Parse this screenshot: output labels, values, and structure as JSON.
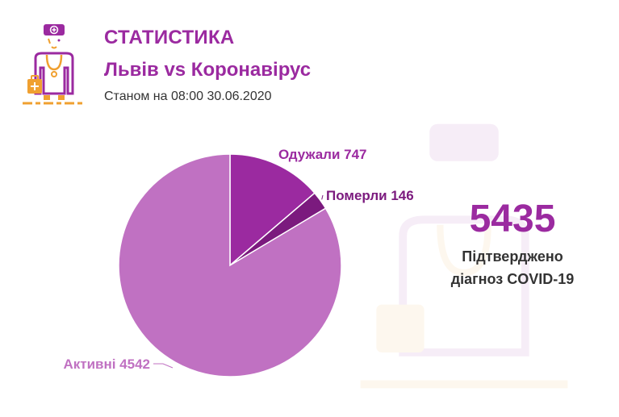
{
  "header": {
    "title": "СТАТИСТИКА",
    "subtitle": "Львів vs Коронавірус",
    "date": "Станом на 08:00 30.06.2020"
  },
  "summary": {
    "total": "5435",
    "caption_line1": "Підтверджено",
    "caption_line2": "діагноз COVID-19"
  },
  "colors": {
    "brand": "#9b2aa0",
    "recovered": "#9b2aa0",
    "deaths": "#7b1a7e",
    "active": "#c071c2",
    "accent_orange": "#f0a030"
  },
  "icons": {
    "logo": "doctor-icon",
    "watermark": "doctor-watermark-icon"
  },
  "chart_data": {
    "type": "pie",
    "categories": [
      "Одужали",
      "Померли",
      "Активні"
    ],
    "values": [
      747,
      146,
      4542
    ],
    "labels": [
      "Одужали 747",
      "Померли 146",
      "Активні 4542"
    ],
    "colors": [
      "#9b2aa0",
      "#7b1a7e",
      "#c071c2"
    ]
  }
}
